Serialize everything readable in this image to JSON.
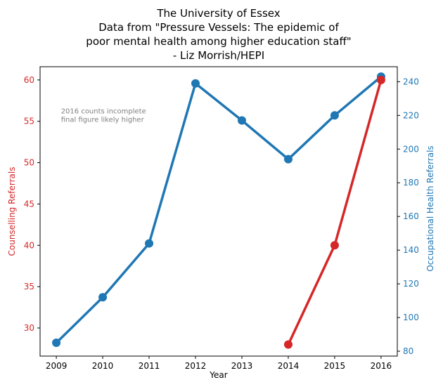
{
  "chart_data": {
    "type": "line",
    "title_lines": [
      "The University of Essex",
      "Data from \"Pressure Vessels: The epidemic of",
      "poor mental health among higher education staff\"",
      "- Liz Morrish/HEPI"
    ],
    "xlabel": "Year",
    "ylabel_left": "Counselling Referrals",
    "ylabel_right": "Occupational Health Referrals",
    "x_ticks": [
      2009,
      2010,
      2011,
      2012,
      2013,
      2014,
      2015,
      2016
    ],
    "xlim": [
      2008.65,
      2016.35
    ],
    "ylim_left": [
      26.6,
      61.6
    ],
    "ylim_right": [
      77.1,
      248.9
    ],
    "y_ticks_left": [
      30,
      35,
      40,
      45,
      50,
      55,
      60
    ],
    "y_ticks_right": [
      80,
      100,
      120,
      140,
      160,
      180,
      200,
      220,
      240
    ],
    "annotation_lines": [
      "2016 counts incomplete",
      "final figure likely higher"
    ],
    "annotation_at": {
      "x": 2009.1,
      "y_left": 55.2
    },
    "grid": false,
    "colors": {
      "left": "#d62728",
      "right": "#1f77b4",
      "axes": "#000000",
      "note": "#808080"
    },
    "series": [
      {
        "axis": "left",
        "color": "#d62728",
        "x": [
          2014,
          2015,
          2016
        ],
        "y": [
          28,
          40,
          60
        ]
      },
      {
        "axis": "right",
        "color": "#1f77b4",
        "x": [
          2009,
          2010,
          2011,
          2012,
          2013,
          2014,
          2015,
          2016
        ],
        "y": [
          85,
          112,
          144,
          239,
          217,
          194,
          220,
          243
        ]
      }
    ]
  }
}
